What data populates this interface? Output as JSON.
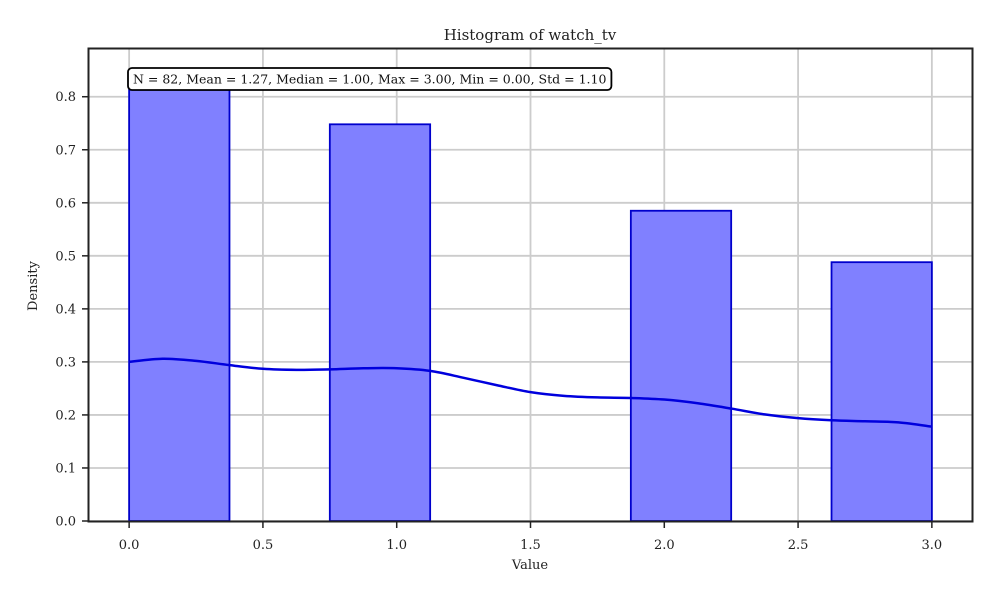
{
  "chart_data": {
    "type": "bar",
    "title": "Histogram of watch_tv",
    "xlabel": "Value",
    "ylabel": "Density",
    "xlim": [
      -0.15,
      3.15
    ],
    "ylim": [
      0,
      0.89
    ],
    "xticks": [
      0.0,
      0.5,
      1.0,
      1.5,
      2.0,
      2.5,
      3.0
    ],
    "xtick_labels": [
      "0.0",
      "0.5",
      "1.0",
      "1.5",
      "2.0",
      "2.5",
      "3.0"
    ],
    "yticks": [
      0.0,
      0.1,
      0.2,
      0.3,
      0.4,
      0.5,
      0.6,
      0.7,
      0.8
    ],
    "ytick_labels": [
      "0.0",
      "0.1",
      "0.2",
      "0.3",
      "0.4",
      "0.5",
      "0.6",
      "0.7",
      "0.8"
    ],
    "grid": true,
    "bins": [
      {
        "start": 0.0,
        "end": 0.375,
        "value": 0.813
      },
      {
        "start": 0.75,
        "end": 1.125,
        "value": 0.748
      },
      {
        "start": 1.875,
        "end": 2.25,
        "value": 0.585
      },
      {
        "start": 2.625,
        "end": 3.0,
        "value": 0.488
      }
    ],
    "kde": {
      "x": [
        0.0,
        0.125,
        0.25,
        0.375,
        0.5,
        0.625,
        0.75,
        0.875,
        1.0,
        1.125,
        1.25,
        1.375,
        1.5,
        1.625,
        1.75,
        1.875,
        2.0,
        2.125,
        2.25,
        2.375,
        2.5,
        2.625,
        2.75,
        2.875,
        3.0
      ],
      "y": [
        0.3,
        0.306,
        0.302,
        0.294,
        0.287,
        0.285,
        0.286,
        0.288,
        0.288,
        0.283,
        0.27,
        0.256,
        0.243,
        0.236,
        0.233,
        0.232,
        0.229,
        0.222,
        0.212,
        0.201,
        0.194,
        0.19,
        0.188,
        0.186,
        0.178
      ]
    },
    "bar_color": "#8080ff",
    "bar_edge_color": "#0000cc",
    "kde_color": "#0000dd",
    "grid_color": "#cccccc",
    "stats_box": "N = 82, Mean = 1.27, Median = 1.00, Max = 3.00, Min = 0.00, Std = 1.10"
  }
}
